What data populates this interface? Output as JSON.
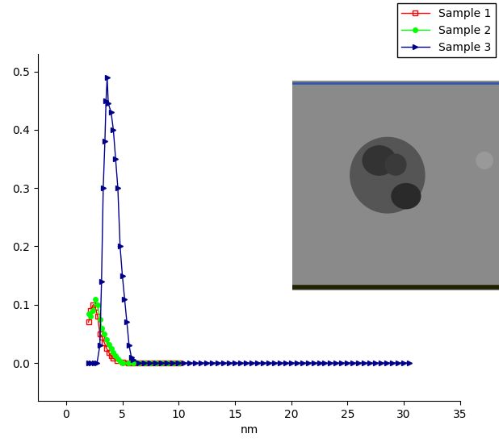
{
  "chart_data": {
    "type": "line",
    "x_label": "nm",
    "xlim": [
      -2.5,
      35
    ],
    "xticks": [
      0,
      5,
      10,
      15,
      20,
      25,
      30,
      35
    ],
    "ylim": [
      -0.065,
      0.53
    ],
    "yticks": [
      {
        "value": 0,
        "label": "0.0"
      },
      0.1,
      0.2,
      0.3,
      0.4,
      0.5
    ],
    "legend": "upper right",
    "series": [
      {
        "name": "Sample 1",
        "color": "#ff0000",
        "marker": "square",
        "x": [
          2.0,
          2.2,
          2.4,
          2.6,
          2.8,
          3.0,
          3.2,
          3.4,
          3.6,
          3.8,
          4.0,
          4.2,
          4.5,
          5.0,
          5.5,
          6.0,
          6.5,
          7.0,
          7.5,
          8.0,
          8.5,
          9.0,
          9.5,
          10.0
        ],
        "values": [
          0.07,
          0.09,
          0.1,
          0.095,
          0.08,
          0.05,
          0.045,
          0.035,
          0.025,
          0.018,
          0.012,
          0.008,
          0.004,
          0.001,
          0,
          0,
          0,
          0,
          0,
          0,
          0,
          0,
          0,
          0
        ]
      },
      {
        "name": "Sample 2",
        "color": "#00ff00",
        "marker": "circle",
        "x": [
          2.0,
          2.2,
          2.4,
          2.6,
          2.8,
          3.0,
          3.2,
          3.4,
          3.6,
          3.8,
          4.0,
          4.2,
          4.4,
          4.6,
          4.8,
          5.0,
          5.5,
          6.0,
          6.5,
          7.0,
          7.5,
          8.0,
          8.5,
          9.0,
          9.5,
          10.0
        ],
        "values": [
          0.085,
          0.08,
          0.09,
          0.11,
          0.1,
          0.075,
          0.06,
          0.05,
          0.04,
          0.032,
          0.025,
          0.018,
          0.012,
          0.007,
          0.003,
          0,
          0,
          0,
          0,
          0,
          0,
          0,
          0,
          0,
          0,
          0
        ]
      },
      {
        "name": "Sample 3",
        "color": "#00008b",
        "marker": "triangle_right",
        "x": [
          2.0,
          2.25,
          2.5,
          2.75,
          3.0,
          3.15,
          3.3,
          3.45,
          3.55,
          3.65,
          3.75,
          4.0,
          4.2,
          4.4,
          4.6,
          4.8,
          5.0,
          5.2,
          5.4,
          5.6,
          5.8,
          6.0,
          6.5,
          7.0,
          7.5,
          8.0,
          8.5,
          9.0,
          9.5,
          10.0,
          10.5,
          11.0,
          11.5,
          12.0,
          12.5,
          13.0,
          13.5,
          14.0,
          14.5,
          15.0,
          15.5,
          16.0,
          16.5,
          17.0,
          17.5,
          18.0,
          18.5,
          19.0,
          19.5,
          20.0,
          20.5,
          21.0,
          21.5,
          22.0,
          22.5,
          23.0,
          23.5,
          24.0,
          24.5,
          25.0,
          25.5,
          26.0,
          26.5,
          27.0,
          27.5,
          28.0,
          28.5,
          29.0,
          29.5,
          30.0,
          30.5
        ],
        "values": [
          0,
          0,
          0,
          0,
          0.03,
          0.14,
          0.3,
          0.38,
          0.45,
          0.49,
          0.445,
          0.43,
          0.4,
          0.35,
          0.3,
          0.2,
          0.15,
          0.11,
          0.07,
          0.03,
          0.01,
          0.005,
          0,
          0,
          0,
          0,
          0,
          0,
          0,
          0,
          0,
          0,
          0,
          0,
          0,
          0,
          0,
          0,
          0,
          0,
          0,
          0,
          0,
          0,
          0,
          0,
          0,
          0,
          0,
          0,
          0,
          0,
          0,
          0,
          0,
          0,
          0,
          0,
          0,
          0,
          0,
          0,
          0,
          0,
          0,
          0,
          0,
          0,
          0,
          0,
          0
        ]
      }
    ]
  }
}
